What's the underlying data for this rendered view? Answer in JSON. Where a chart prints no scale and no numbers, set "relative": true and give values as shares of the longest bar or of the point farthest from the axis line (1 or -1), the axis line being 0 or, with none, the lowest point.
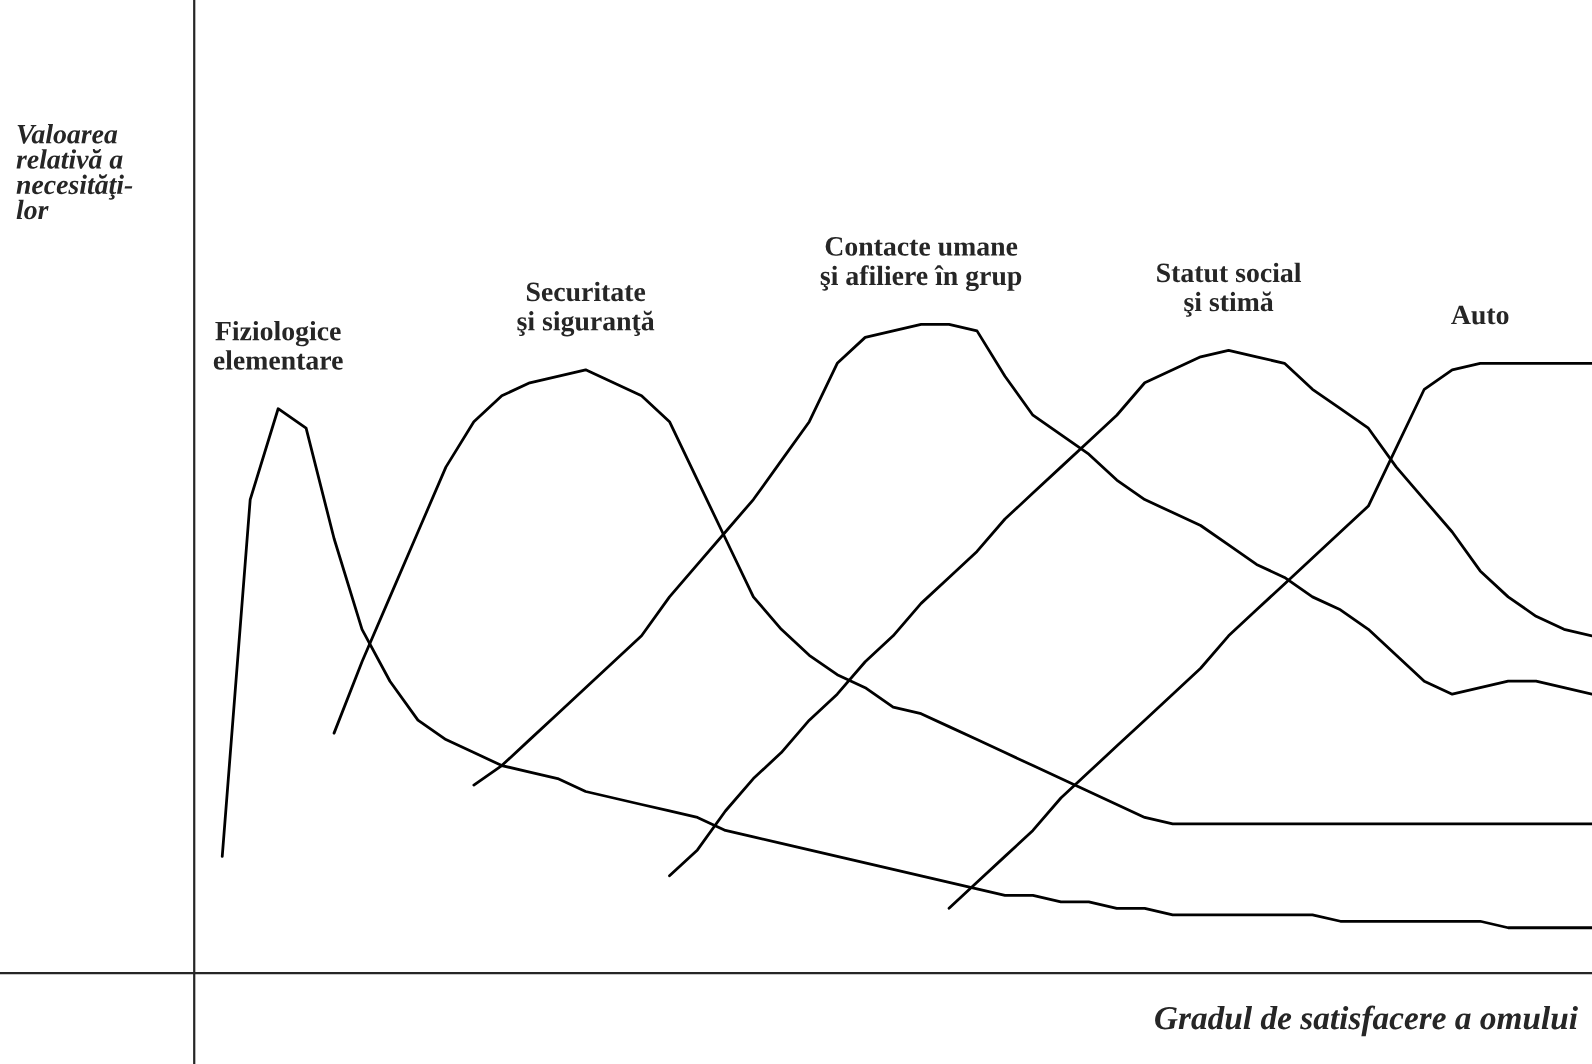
{
  "chart_data": {
    "type": "line",
    "relative": true,
    "ylabel": "Valoarea\nrelativă a\nnecesităţi-\nlor",
    "xlabel": "Gradul de satisfacere a omului",
    "marker": "none",
    "line_style": "solid",
    "categories": [
      null,
      null,
      null,
      null,
      null,
      null,
      null,
      null,
      null,
      null,
      null,
      null,
      null,
      null,
      null,
      null,
      null,
      null,
      null,
      null,
      null,
      null,
      null,
      null,
      null,
      null,
      null,
      null,
      null,
      null,
      null,
      null,
      null,
      null,
      null,
      null,
      null,
      null,
      null,
      null,
      null,
      null,
      null,
      null,
      null,
      null,
      null,
      null,
      null,
      null
    ],
    "series": [
      {
        "name": "Fiziologice\nelementare",
        "color": "#000000",
        "values": [
          0.18,
          0.73,
          0.87,
          0.84,
          0.67,
          0.53,
          0.45,
          0.39,
          0.36,
          0.34,
          0.32,
          0.31,
          0.3,
          0.28,
          0.27,
          0.26,
          0.25,
          0.24,
          0.22,
          0.21,
          0.2,
          0.19,
          0.18,
          0.17,
          0.16,
          0.15,
          0.14,
          0.13,
          0.12,
          0.12,
          0.11,
          0.11,
          0.1,
          0.1,
          0.09,
          0.09,
          0.09,
          0.09,
          0.09,
          0.09,
          0.08,
          0.08,
          0.08,
          0.08,
          0.08,
          0.08,
          0.07,
          0.07,
          0.07,
          0.07
        ]
      },
      {
        "name": "Securitate\nşi siguranţă",
        "color": "#000000",
        "values": [
          null,
          null,
          null,
          null,
          0.37,
          0.48,
          0.58,
          0.68,
          0.78,
          0.85,
          0.89,
          0.91,
          0.92,
          0.93,
          0.91,
          0.89,
          0.85,
          0.76,
          0.67,
          0.58,
          0.53,
          0.49,
          0.46,
          0.44,
          0.41,
          0.4,
          0.38,
          0.36,
          0.34,
          0.32,
          0.3,
          0.28,
          0.26,
          0.24,
          0.23,
          0.23,
          0.23,
          0.23,
          0.23,
          0.23,
          0.23,
          0.23,
          0.23,
          0.23,
          0.23,
          0.23,
          0.23,
          0.23,
          0.23,
          0.23
        ]
      },
      {
        "name": "Contacte umane\nşi afiliere în grup",
        "color": "#000000",
        "values": [
          null,
          null,
          null,
          null,
          null,
          null,
          null,
          null,
          null,
          0.29,
          0.32,
          0.36,
          0.4,
          0.44,
          0.48,
          0.52,
          0.58,
          0.63,
          0.68,
          0.73,
          0.79,
          0.85,
          0.94,
          0.98,
          0.99,
          1.0,
          1.0,
          0.99,
          0.92,
          0.86,
          0.83,
          0.8,
          0.76,
          0.73,
          0.71,
          0.69,
          0.66,
          0.63,
          0.61,
          0.58,
          0.56,
          0.53,
          0.49,
          0.45,
          0.43,
          0.44,
          0.45,
          0.45,
          0.44,
          0.43
        ]
      },
      {
        "name": "Statut social\nşi stimă",
        "color": "#000000",
        "values": [
          null,
          null,
          null,
          null,
          null,
          null,
          null,
          null,
          null,
          null,
          null,
          null,
          null,
          null,
          null,
          null,
          0.15,
          0.19,
          0.25,
          0.3,
          0.34,
          0.39,
          0.43,
          0.48,
          0.52,
          0.57,
          0.61,
          0.65,
          0.7,
          0.74,
          0.78,
          0.82,
          0.86,
          0.91,
          0.93,
          0.95,
          0.96,
          0.95,
          0.94,
          0.9,
          0.87,
          0.84,
          0.78,
          0.73,
          0.68,
          0.62,
          0.58,
          0.55,
          0.53,
          0.52
        ]
      },
      {
        "name": "Auto",
        "color": "#000000",
        "values": [
          null,
          null,
          null,
          null,
          null,
          null,
          null,
          null,
          null,
          null,
          null,
          null,
          null,
          null,
          null,
          null,
          null,
          null,
          null,
          null,
          null,
          null,
          null,
          null,
          null,
          null,
          0.1,
          0.14,
          0.18,
          0.22,
          0.27,
          0.31,
          0.35,
          0.39,
          0.43,
          0.47,
          0.52,
          0.56,
          0.6,
          0.64,
          0.68,
          0.72,
          0.81,
          0.9,
          0.93,
          0.94,
          0.94,
          0.94,
          0.94,
          0.94
        ]
      }
    ]
  }
}
